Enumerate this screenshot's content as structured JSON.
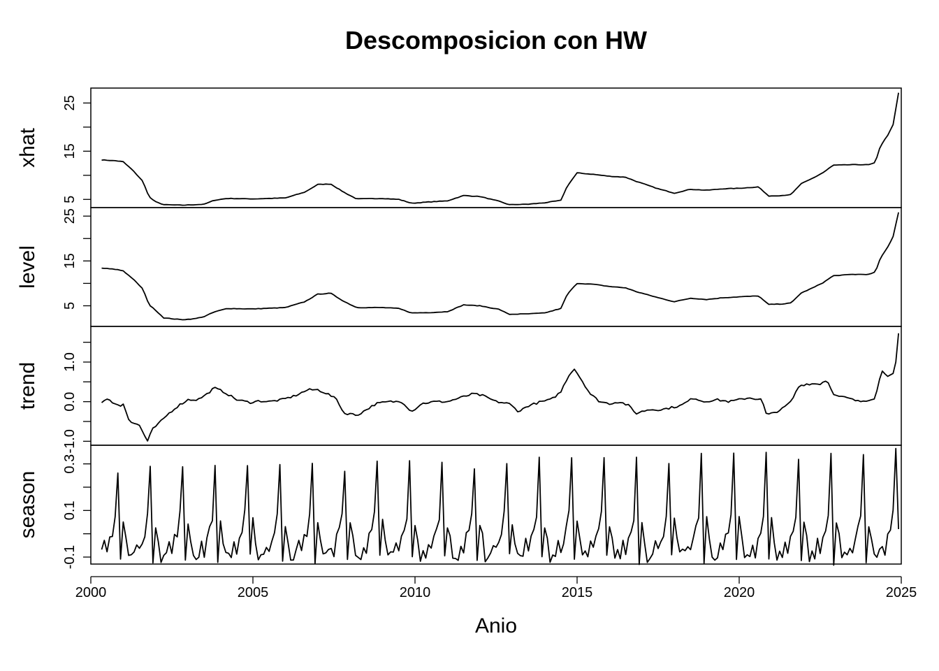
{
  "chart_data": {
    "type": "line",
    "title": "Descomposicion con HW",
    "xlabel": "Anio",
    "xlim": [
      2000.0,
      2025.0
    ],
    "x_ticks": [
      "2000",
      "2005",
      "2010",
      "2015",
      "2020",
      "2025"
    ],
    "x_start": 2000.333,
    "x_step": 0.08333,
    "panels": [
      {
        "name": "xhat",
        "ylim": [
          3.3,
          28.1
        ],
        "y_labeled_ticks": [
          "5",
          "15",
          "25"
        ],
        "y_minor_ticks": [
          "10",
          "20"
        ],
        "control_points": [
          [
            2000.333,
            13.2
          ],
          [
            2000.8,
            13.0
          ],
          [
            2001.0,
            12.8
          ],
          [
            2001.3,
            11.0
          ],
          [
            2001.6,
            8.8
          ],
          [
            2001.8,
            5.5
          ],
          [
            2002.0,
            4.5
          ],
          [
            2002.25,
            3.9
          ],
          [
            2002.8,
            3.8
          ],
          [
            2003.2,
            3.9
          ],
          [
            2003.5,
            4.0
          ],
          [
            2003.8,
            4.8
          ],
          [
            2004.2,
            5.2
          ],
          [
            2005.0,
            5.1
          ],
          [
            2006.0,
            5.3
          ],
          [
            2006.6,
            6.5
          ],
          [
            2007.0,
            8.1
          ],
          [
            2007.4,
            8.2
          ],
          [
            2007.8,
            6.5
          ],
          [
            2008.2,
            5.1
          ],
          [
            2009.0,
            5.2
          ],
          [
            2009.5,
            5.0
          ],
          [
            2009.9,
            4.2
          ],
          [
            2010.5,
            4.5
          ],
          [
            2011.0,
            4.7
          ],
          [
            2011.5,
            5.8
          ],
          [
            2012.0,
            5.6
          ],
          [
            2012.6,
            4.6
          ],
          [
            2012.9,
            3.9
          ],
          [
            2013.5,
            4.0
          ],
          [
            2014.0,
            4.3
          ],
          [
            2014.5,
            4.8
          ],
          [
            2014.7,
            7.8
          ],
          [
            2015.0,
            10.5
          ],
          [
            2015.5,
            10.2
          ],
          [
            2016.0,
            9.8
          ],
          [
            2016.5,
            9.6
          ],
          [
            2016.8,
            8.8
          ],
          [
            2017.5,
            7.2
          ],
          [
            2018.0,
            6.3
          ],
          [
            2018.5,
            7.1
          ],
          [
            2019.0,
            6.9
          ],
          [
            2019.5,
            7.2
          ],
          [
            2020.0,
            7.3
          ],
          [
            2020.6,
            7.6
          ],
          [
            2020.9,
            5.7
          ],
          [
            2021.3,
            5.8
          ],
          [
            2021.6,
            6.0
          ],
          [
            2021.9,
            8.2
          ],
          [
            2022.3,
            9.5
          ],
          [
            2022.6,
            10.6
          ],
          [
            2022.9,
            12.1
          ],
          [
            2023.5,
            12.2
          ],
          [
            2024.0,
            12.2
          ],
          [
            2024.2,
            12.6
          ],
          [
            2024.35,
            16.0
          ],
          [
            2024.6,
            18.5
          ],
          [
            2024.75,
            20.5
          ],
          [
            2024.92,
            27.3
          ]
        ]
      },
      {
        "name": "level",
        "ylim": [
          0.4,
          26.9
        ],
        "y_labeled_ticks": [
          "5",
          "15",
          "25"
        ],
        "y_minor_ticks": [
          "10",
          "20"
        ],
        "control_points": [
          [
            2000.333,
            13.4
          ],
          [
            2000.8,
            13.1
          ],
          [
            2001.0,
            12.8
          ],
          [
            2001.3,
            11.0
          ],
          [
            2001.6,
            8.8
          ],
          [
            2001.8,
            5.2
          ],
          [
            2002.0,
            4.0
          ],
          [
            2002.25,
            2.3
          ],
          [
            2002.8,
            1.9
          ],
          [
            2003.2,
            2.1
          ],
          [
            2003.5,
            2.6
          ],
          [
            2003.8,
            3.6
          ],
          [
            2004.2,
            4.4
          ],
          [
            2005.0,
            4.3
          ],
          [
            2006.0,
            4.6
          ],
          [
            2006.6,
            5.9
          ],
          [
            2007.0,
            7.6
          ],
          [
            2007.4,
            7.8
          ],
          [
            2007.8,
            6.0
          ],
          [
            2008.2,
            4.6
          ],
          [
            2009.0,
            4.6
          ],
          [
            2009.5,
            4.4
          ],
          [
            2009.9,
            3.4
          ],
          [
            2010.5,
            3.5
          ],
          [
            2011.0,
            3.7
          ],
          [
            2011.5,
            5.2
          ],
          [
            2012.0,
            5.0
          ],
          [
            2012.6,
            4.2
          ],
          [
            2012.9,
            3.1
          ],
          [
            2013.5,
            3.2
          ],
          [
            2014.0,
            3.4
          ],
          [
            2014.5,
            4.4
          ],
          [
            2014.7,
            7.6
          ],
          [
            2015.0,
            10.0
          ],
          [
            2015.5,
            9.8
          ],
          [
            2016.0,
            9.3
          ],
          [
            2016.5,
            9.0
          ],
          [
            2016.8,
            8.2
          ],
          [
            2017.5,
            6.8
          ],
          [
            2018.0,
            5.9
          ],
          [
            2018.5,
            6.7
          ],
          [
            2019.0,
            6.4
          ],
          [
            2019.5,
            6.8
          ],
          [
            2020.0,
            7.0
          ],
          [
            2020.6,
            7.2
          ],
          [
            2020.9,
            5.3
          ],
          [
            2021.3,
            5.4
          ],
          [
            2021.6,
            5.6
          ],
          [
            2021.9,
            7.8
          ],
          [
            2022.3,
            9.1
          ],
          [
            2022.6,
            10.2
          ],
          [
            2022.9,
            11.7
          ],
          [
            2023.5,
            12.0
          ],
          [
            2024.0,
            12.0
          ],
          [
            2024.2,
            12.5
          ],
          [
            2024.35,
            15.5
          ],
          [
            2024.6,
            18.3
          ],
          [
            2024.75,
            20.5
          ],
          [
            2024.92,
            26.0
          ]
        ]
      },
      {
        "name": "trend",
        "ylim": [
          -1.1,
          1.9
        ],
        "y_labeled_ticks": [
          "-1.0",
          "0.0",
          "1.0"
        ],
        "y_minor_ticks": [
          "-0.5",
          "0.5",
          "1.5"
        ],
        "control_points": [
          [
            2000.333,
            0.0
          ],
          [
            2000.5,
            0.05
          ],
          [
            2000.7,
            -0.02
          ],
          [
            2000.9,
            -0.12
          ],
          [
            2001.0,
            -0.05
          ],
          [
            2001.2,
            -0.5
          ],
          [
            2001.5,
            -0.6
          ],
          [
            2001.75,
            -1.0
          ],
          [
            2001.9,
            -0.7
          ],
          [
            2002.1,
            -0.55
          ],
          [
            2002.4,
            -0.3
          ],
          [
            2002.7,
            -0.1
          ],
          [
            2003.0,
            0.05
          ],
          [
            2003.3,
            0.05
          ],
          [
            2003.6,
            0.2
          ],
          [
            2003.8,
            0.35
          ],
          [
            2004.1,
            0.25
          ],
          [
            2004.5,
            0.05
          ],
          [
            2004.9,
            -0.02
          ],
          [
            2005.2,
            0.02
          ],
          [
            2005.5,
            0.0
          ],
          [
            2005.9,
            0.05
          ],
          [
            2006.3,
            0.15
          ],
          [
            2006.7,
            0.3
          ],
          [
            2007.0,
            0.3
          ],
          [
            2007.3,
            0.2
          ],
          [
            2007.6,
            0.05
          ],
          [
            2007.8,
            -0.3
          ],
          [
            2008.0,
            -0.3
          ],
          [
            2008.2,
            -0.35
          ],
          [
            2008.5,
            -0.2
          ],
          [
            2008.8,
            -0.05
          ],
          [
            2009.2,
            0.0
          ],
          [
            2009.6,
            0.0
          ],
          [
            2009.9,
            -0.25
          ],
          [
            2010.2,
            -0.05
          ],
          [
            2010.6,
            0.0
          ],
          [
            2011.0,
            0.0
          ],
          [
            2011.4,
            0.1
          ],
          [
            2011.8,
            0.2
          ],
          [
            2012.1,
            0.15
          ],
          [
            2012.5,
            0.0
          ],
          [
            2012.9,
            -0.05
          ],
          [
            2013.2,
            -0.25
          ],
          [
            2013.5,
            -0.1
          ],
          [
            2013.9,
            0.0
          ],
          [
            2014.2,
            0.05
          ],
          [
            2014.5,
            0.25
          ],
          [
            2014.7,
            0.6
          ],
          [
            2014.9,
            0.85
          ],
          [
            2015.1,
            0.6
          ],
          [
            2015.4,
            0.2
          ],
          [
            2015.7,
            0.0
          ],
          [
            2016.0,
            -0.05
          ],
          [
            2016.3,
            0.0
          ],
          [
            2016.6,
            -0.1
          ],
          [
            2016.8,
            -0.3
          ],
          [
            2017.2,
            -0.2
          ],
          [
            2017.6,
            -0.2
          ],
          [
            2017.9,
            -0.15
          ],
          [
            2018.2,
            -0.1
          ],
          [
            2018.6,
            0.1
          ],
          [
            2018.9,
            0.0
          ],
          [
            2019.3,
            0.05
          ],
          [
            2019.7,
            0.0
          ],
          [
            2020.0,
            0.05
          ],
          [
            2020.3,
            0.1
          ],
          [
            2020.7,
            0.05
          ],
          [
            2020.85,
            -0.35
          ],
          [
            2021.0,
            -0.3
          ],
          [
            2021.3,
            -0.2
          ],
          [
            2021.6,
            0.0
          ],
          [
            2021.85,
            0.4
          ],
          [
            2022.1,
            0.45
          ],
          [
            2022.5,
            0.45
          ],
          [
            2022.7,
            0.55
          ],
          [
            2022.95,
            0.15
          ],
          [
            2023.3,
            0.1
          ],
          [
            2023.7,
            0.0
          ],
          [
            2024.0,
            0.05
          ],
          [
            2024.2,
            0.1
          ],
          [
            2024.4,
            0.8
          ],
          [
            2024.6,
            0.65
          ],
          [
            2024.8,
            0.7
          ],
          [
            2024.92,
            1.75
          ]
        ]
      },
      {
        "name": "season",
        "ylim": [
          -0.13,
          0.38
        ],
        "y_labeled_ticks": [
          "-0.1",
          "0.1",
          "0.3"
        ],
        "y_minor_ticks": [
          "0.0",
          "0.2"
        ],
        "season_profile": [
          -0.09,
          -0.04,
          -0.08,
          -0.02,
          0.01,
          0.08,
          0.26,
          -0.11,
          0.05,
          -0.02,
          -0.1,
          -0.09
        ],
        "season_growth": 0.35
      }
    ]
  }
}
